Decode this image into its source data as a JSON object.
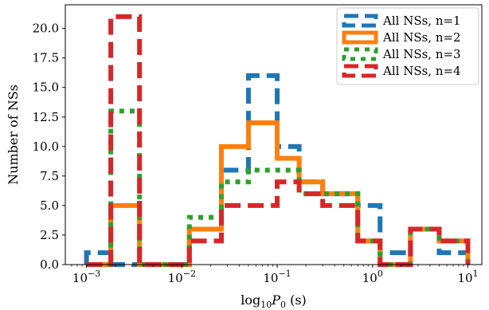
{
  "chart_data": {
    "type": "histogram-step",
    "x_scale": "log",
    "xlabel": "log10P0 (s)",
    "ylabel": "Number of NSs",
    "xlim": [
      0.0006,
      14
    ],
    "ylim": [
      0,
      22
    ],
    "x_ticks": [
      0.001,
      0.01,
      0.1,
      1,
      10
    ],
    "x_tick_labels": [
      {
        "base": "10",
        "exp": "−3"
      },
      {
        "base": "10",
        "exp": "−2"
      },
      {
        "base": "10",
        "exp": "−1"
      },
      {
        "base": "10",
        "exp": "0"
      },
      {
        "base": "10",
        "exp": "1"
      }
    ],
    "y_ticks": [
      0,
      2.5,
      5,
      7.5,
      10,
      12.5,
      15,
      17.5,
      20
    ],
    "y_tick_labels": [
      "0.0",
      "2.5",
      "5.0",
      "7.5",
      "10.0",
      "12.5",
      "15.0",
      "17.5",
      "20.0"
    ],
    "legend_position": "top-right",
    "series": [
      {
        "name": "All NSs, n=1",
        "color": "#1f77b4",
        "style": "dashed",
        "edges": [
          0.001,
          0.0018,
          0.0036,
          0.012,
          0.026,
          0.05,
          0.1,
          0.17,
          0.3,
          0.7,
          1.2,
          2.5,
          5.0,
          10.0
        ],
        "values": [
          1,
          0,
          0,
          3,
          8,
          16,
          10,
          7,
          6,
          5,
          1,
          3,
          1
        ]
      },
      {
        "name": "All NSs, n=2",
        "color": "#ff7f0e",
        "style": "solid",
        "edges": [
          0.001,
          0.0018,
          0.0036,
          0.012,
          0.026,
          0.05,
          0.1,
          0.17,
          0.3,
          0.7,
          1.2,
          2.5,
          5.0,
          10.0
        ],
        "values": [
          0,
          5,
          0,
          3,
          10,
          12,
          9,
          7,
          6,
          2,
          0,
          3,
          2
        ]
      },
      {
        "name": "All NSs, n=3",
        "color": "#2ca02c",
        "style": "dotted",
        "edges": [
          0.001,
          0.0018,
          0.0036,
          0.012,
          0.026,
          0.05,
          0.1,
          0.17,
          0.3,
          0.7,
          1.2,
          2.5,
          5.0,
          10.0
        ],
        "values": [
          0,
          13,
          0,
          4,
          7,
          8,
          8,
          6,
          6,
          2,
          0,
          3,
          2
        ]
      },
      {
        "name": "All NSs, n=4",
        "color": "#d62728",
        "style": "dashed",
        "edges": [
          0.001,
          0.0018,
          0.0036,
          0.012,
          0.026,
          0.05,
          0.1,
          0.17,
          0.3,
          0.7,
          1.2,
          2.5,
          5.0,
          10.0
        ],
        "values": [
          0,
          21,
          0,
          2,
          5,
          5,
          7,
          6,
          5,
          2,
          0,
          3,
          2
        ]
      }
    ]
  }
}
